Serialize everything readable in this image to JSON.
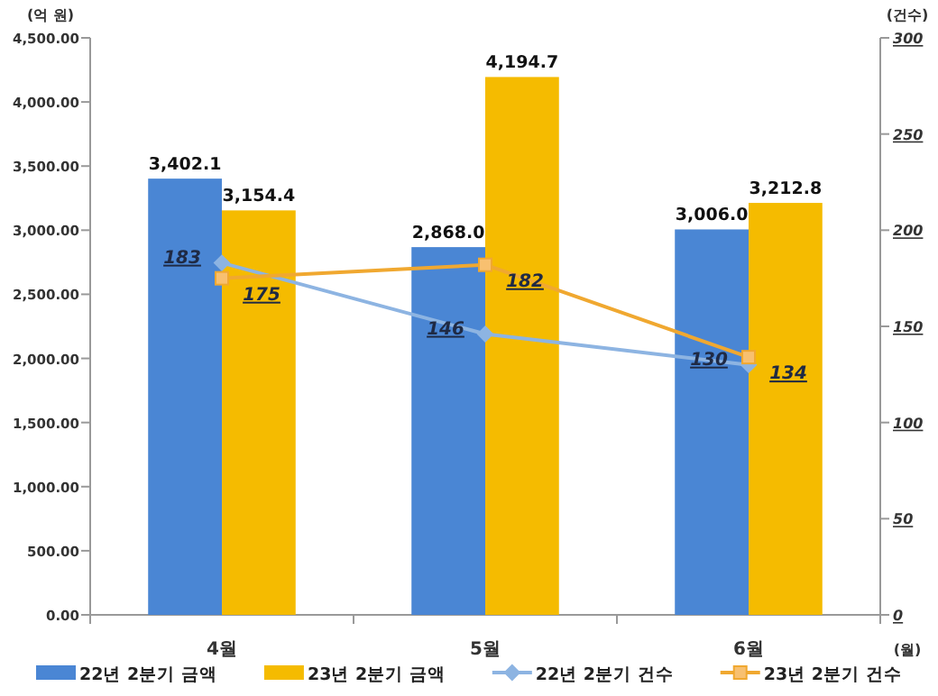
{
  "chart_data": {
    "type": "bar",
    "ylabel": "(억 원)",
    "y2label": "(건수)",
    "xlabel": "(월)",
    "categories": [
      "4월",
      "5월",
      "6월"
    ],
    "series": [
      {
        "name": "22년 2분기 금액",
        "color": "#4a86d4",
        "values": [
          3402.1,
          2868.0,
          3006.0
        ],
        "value_labels": [
          "3,402.1",
          "2,868.0",
          "3,006.0"
        ]
      },
      {
        "name": "23년 2분기 금액",
        "color": "#f5bb00",
        "values": [
          3154.4,
          4194.7,
          3212.8
        ],
        "value_labels": [
          "3,154.4",
          "4,194.7",
          "3,212.8"
        ]
      },
      {
        "name": "22년 2분기 건수",
        "type": "line",
        "axis": "y2",
        "marker": "diamond",
        "color": "#8db4e2",
        "values": [
          183,
          146,
          130
        ],
        "value_labels": [
          "183",
          "146",
          "130"
        ]
      },
      {
        "name": "23년 2분기 건수",
        "type": "line",
        "axis": "y2",
        "marker": "square",
        "color": "#f0a830",
        "values": [
          175,
          182,
          134
        ],
        "value_labels": [
          "175",
          "182",
          "134"
        ]
      }
    ],
    "ylim": [
      0,
      4500
    ],
    "yticks": [
      {
        "value": 0,
        "label": "0.00"
      },
      {
        "value": 500,
        "label": "500.00"
      },
      {
        "value": 1000,
        "label": "1,000.00"
      },
      {
        "value": 1500,
        "label": "1,500.00"
      },
      {
        "value": 2000,
        "label": "2,000.00"
      },
      {
        "value": 2500,
        "label": "2,500.00"
      },
      {
        "value": 3000,
        "label": "3,000.00"
      },
      {
        "value": 3500,
        "label": "3,500.00"
      },
      {
        "value": 4000,
        "label": "4,000.00"
      },
      {
        "value": 4500,
        "label": "4,500.00"
      }
    ],
    "y2lim": [
      0,
      300
    ],
    "y2ticks": [
      0,
      50,
      100,
      150,
      200,
      250,
      300
    ],
    "legend": "bottom",
    "grid": false
  }
}
